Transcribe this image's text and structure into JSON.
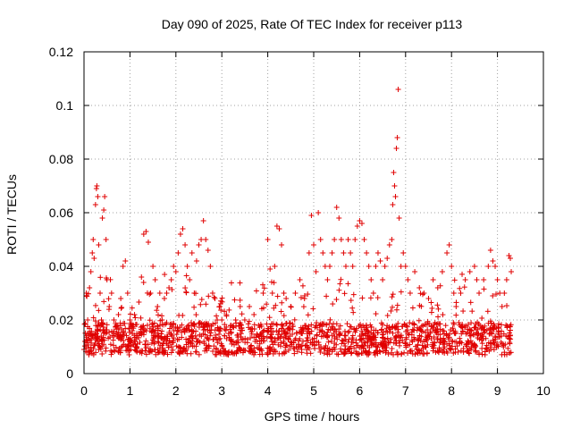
{
  "chart_data": {
    "type": "scatter",
    "title": "Day 090 of 2025, Rate Of TEC Index for receiver p113",
    "xlabel": "GPS time / hours",
    "ylabel": "ROTI / TECUs",
    "xlim": [
      0,
      10
    ],
    "ylim": [
      0,
      0.12
    ],
    "xticks": [
      0,
      1,
      2,
      3,
      4,
      5,
      6,
      7,
      8,
      9,
      10
    ],
    "yticks": [
      0,
      0.02,
      0.04,
      0.06,
      0.08,
      0.1,
      0.12
    ],
    "xtick_labels": [
      "0",
      "1",
      "2",
      "3",
      "4",
      "5",
      "6",
      "7",
      "8",
      "9",
      "10"
    ],
    "ytick_labels": [
      "0",
      "0.02",
      "0.04",
      "0.06",
      "0.08",
      "0.1",
      "0.12"
    ],
    "grid": true,
    "marker": "+",
    "color": "#e00000",
    "data_x_range": [
      0,
      9.3
    ],
    "series": [
      {
        "name": "ROTI",
        "note": "dense cloud of points; representative sample of ROTI values per time",
        "points": [
          [
            0.0,
            0.009
          ],
          [
            0.02,
            0.012
          ],
          [
            0.05,
            0.03
          ],
          [
            0.08,
            0.02
          ],
          [
            0.1,
            0.015
          ],
          [
            0.12,
            0.032
          ],
          [
            0.15,
            0.038
          ],
          [
            0.18,
            0.045
          ],
          [
            0.2,
            0.05
          ],
          [
            0.22,
            0.043
          ],
          [
            0.25,
            0.063
          ],
          [
            0.27,
            0.069
          ],
          [
            0.28,
            0.07
          ],
          [
            0.3,
            0.066
          ],
          [
            0.32,
            0.048
          ],
          [
            0.35,
            0.03
          ],
          [
            0.38,
            0.02
          ],
          [
            0.4,
            0.058
          ],
          [
            0.43,
            0.061
          ],
          [
            0.45,
            0.066
          ],
          [
            0.48,
            0.05
          ],
          [
            0.5,
            0.035
          ],
          [
            0.55,
            0.025
          ],
          [
            0.6,
            0.03
          ],
          [
            0.65,
            0.02
          ],
          [
            0.7,
            0.015
          ],
          [
            0.75,
            0.022
          ],
          [
            0.8,
            0.028
          ],
          [
            0.85,
            0.04
          ],
          [
            0.9,
            0.042
          ],
          [
            0.95,
            0.03
          ],
          [
            1.0,
            0.02
          ],
          [
            1.05,
            0.015
          ],
          [
            1.1,
            0.012
          ],
          [
            1.15,
            0.01
          ],
          [
            1.2,
            0.015
          ],
          [
            1.25,
            0.036
          ],
          [
            1.3,
            0.052
          ],
          [
            1.35,
            0.053
          ],
          [
            1.4,
            0.049
          ],
          [
            1.45,
            0.03
          ],
          [
            1.5,
            0.04
          ],
          [
            1.55,
            0.035
          ],
          [
            1.6,
            0.025
          ],
          [
            1.65,
            0.03
          ],
          [
            1.7,
            0.02
          ],
          [
            1.75,
            0.028
          ],
          [
            1.8,
            0.03
          ],
          [
            1.85,
            0.032
          ],
          [
            1.9,
            0.035
          ],
          [
            1.95,
            0.04
          ],
          [
            2.0,
            0.038
          ],
          [
            2.05,
            0.045
          ],
          [
            2.1,
            0.052
          ],
          [
            2.15,
            0.054
          ],
          [
            2.2,
            0.048
          ],
          [
            2.25,
            0.04
          ],
          [
            2.3,
            0.035
          ],
          [
            2.35,
            0.045
          ],
          [
            2.4,
            0.03
          ],
          [
            2.45,
            0.042
          ],
          [
            2.5,
            0.048
          ],
          [
            2.55,
            0.05
          ],
          [
            2.6,
            0.057
          ],
          [
            2.65,
            0.05
          ],
          [
            2.7,
            0.046
          ],
          [
            2.75,
            0.04
          ],
          [
            2.8,
            0.03
          ],
          [
            2.85,
            0.028
          ],
          [
            2.9,
            0.02
          ],
          [
            2.95,
            0.025
          ],
          [
            3.0,
            0.02
          ],
          [
            3.1,
            0.022
          ],
          [
            3.2,
            0.018
          ],
          [
            3.3,
            0.02
          ],
          [
            3.4,
            0.025
          ],
          [
            3.5,
            0.02
          ],
          [
            3.6,
            0.025
          ],
          [
            3.7,
            0.022
          ],
          [
            3.8,
            0.018
          ],
          [
            3.9,
            0.03
          ],
          [
            4.0,
            0.05
          ],
          [
            4.05,
            0.039
          ],
          [
            4.1,
            0.03
          ],
          [
            4.15,
            0.04
          ],
          [
            4.2,
            0.055
          ],
          [
            4.25,
            0.054
          ],
          [
            4.3,
            0.048
          ],
          [
            4.35,
            0.03
          ],
          [
            4.4,
            0.028
          ],
          [
            4.5,
            0.025
          ],
          [
            4.6,
            0.03
          ],
          [
            4.7,
            0.035
          ],
          [
            4.8,
            0.028
          ],
          [
            4.9,
            0.045
          ],
          [
            4.95,
            0.059
          ],
          [
            5.0,
            0.048
          ],
          [
            5.05,
            0.038
          ],
          [
            5.1,
            0.06
          ],
          [
            5.15,
            0.05
          ],
          [
            5.2,
            0.045
          ],
          [
            5.25,
            0.04
          ],
          [
            5.3,
            0.035
          ],
          [
            5.35,
            0.04
          ],
          [
            5.4,
            0.045
          ],
          [
            5.45,
            0.05
          ],
          [
            5.5,
            0.062
          ],
          [
            5.55,
            0.058
          ],
          [
            5.6,
            0.05
          ],
          [
            5.65,
            0.045
          ],
          [
            5.7,
            0.04
          ],
          [
            5.75,
            0.05
          ],
          [
            5.8,
            0.045
          ],
          [
            5.85,
            0.04
          ],
          [
            5.9,
            0.05
          ],
          [
            5.95,
            0.055
          ],
          [
            6.0,
            0.057
          ],
          [
            6.05,
            0.056
          ],
          [
            6.1,
            0.05
          ],
          [
            6.15,
            0.045
          ],
          [
            6.2,
            0.04
          ],
          [
            6.25,
            0.035
          ],
          [
            6.3,
            0.03
          ],
          [
            6.35,
            0.04
          ],
          [
            6.4,
            0.045
          ],
          [
            6.45,
            0.042
          ],
          [
            6.5,
            0.035
          ],
          [
            6.55,
            0.04
          ],
          [
            6.6,
            0.043
          ],
          [
            6.65,
            0.048
          ],
          [
            6.7,
            0.05
          ],
          [
            6.72,
            0.063
          ],
          [
            6.74,
            0.075
          ],
          [
            6.76,
            0.07
          ],
          [
            6.78,
            0.066
          ],
          [
            6.8,
            0.084
          ],
          [
            6.82,
            0.088
          ],
          [
            6.84,
            0.106
          ],
          [
            6.86,
            0.058
          ],
          [
            6.9,
            0.04
          ],
          [
            6.95,
            0.045
          ],
          [
            7.0,
            0.04
          ],
          [
            7.05,
            0.035
          ],
          [
            7.1,
            0.03
          ],
          [
            7.2,
            0.038
          ],
          [
            7.3,
            0.032
          ],
          [
            7.4,
            0.03
          ],
          [
            7.5,
            0.028
          ],
          [
            7.6,
            0.035
          ],
          [
            7.7,
            0.032
          ],
          [
            7.8,
            0.038
          ],
          [
            7.9,
            0.045
          ],
          [
            7.95,
            0.048
          ],
          [
            8.0,
            0.04
          ],
          [
            8.05,
            0.03
          ],
          [
            8.1,
            0.025
          ],
          [
            8.2,
            0.03
          ],
          [
            8.3,
            0.035
          ],
          [
            8.4,
            0.038
          ],
          [
            8.5,
            0.04
          ],
          [
            8.55,
            0.035
          ],
          [
            8.6,
            0.03
          ],
          [
            8.7,
            0.035
          ],
          [
            8.8,
            0.04
          ],
          [
            8.85,
            0.046
          ],
          [
            8.9,
            0.042
          ],
          [
            8.95,
            0.04
          ],
          [
            9.0,
            0.035
          ],
          [
            9.05,
            0.03
          ],
          [
            9.1,
            0.025
          ],
          [
            9.15,
            0.03
          ],
          [
            9.2,
            0.035
          ],
          [
            9.25,
            0.044
          ],
          [
            9.28,
            0.043
          ],
          [
            9.3,
            0.038
          ]
        ]
      }
    ]
  }
}
